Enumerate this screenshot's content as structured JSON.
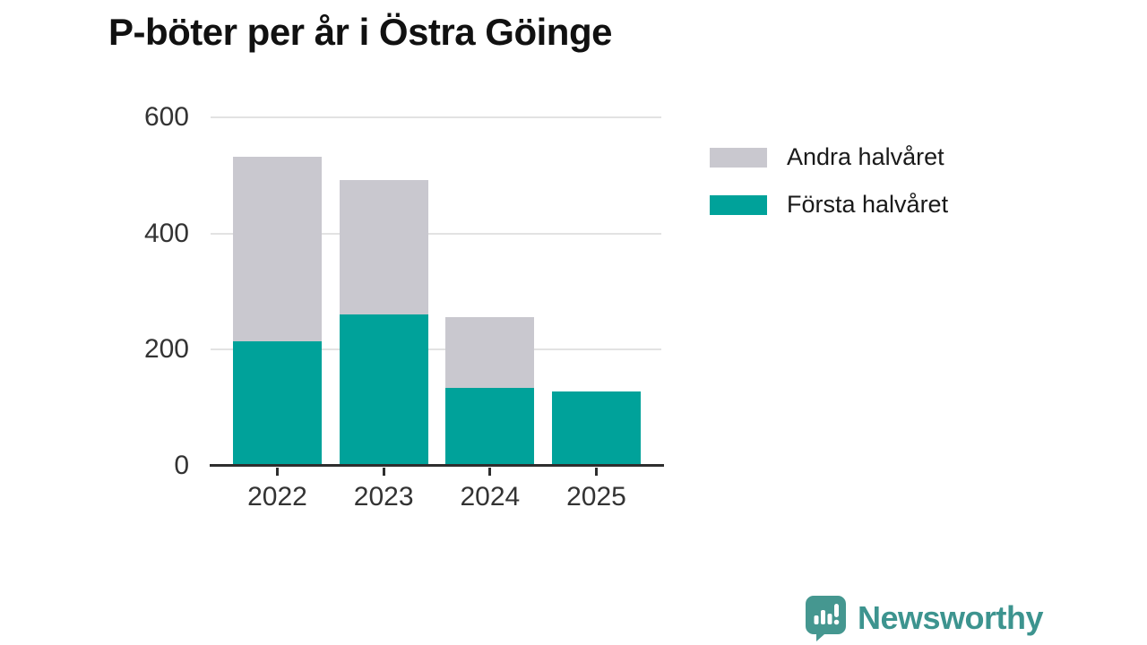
{
  "header": {
    "title": "P-böter per år i Östra Göinge"
  },
  "chart_data": {
    "type": "bar",
    "stacked": true,
    "title": "P-böter per år i Östra Göinge",
    "xlabel": "",
    "ylabel": "",
    "categories": [
      "2022",
      "2023",
      "2024",
      "2025"
    ],
    "series": [
      {
        "name": "Första halvåret",
        "color": "#00a29a",
        "values": [
          215,
          260,
          134,
          128
        ]
      },
      {
        "name": "Andra halvåret",
        "color": "#c9c8cf",
        "values": [
          317,
          232,
          122,
          0
        ]
      }
    ],
    "totals": [
      532,
      492,
      256,
      128
    ],
    "ylim": [
      0,
      600
    ],
    "yticks": [
      0,
      200,
      400,
      600
    ],
    "grid": "horizontal",
    "gridline_color": "#e2e2e2",
    "axis_color": "#2e2e2e",
    "legend_position": "right-top",
    "legend": [
      {
        "label": "Andra halvåret",
        "color": "#c9c8cf"
      },
      {
        "label": "Första halvåret",
        "color": "#00a29a"
      }
    ]
  },
  "branding": {
    "wordmark": "Newsworthy",
    "logo_icon": "speech-bubble-bar-chart-icon",
    "color": "#3d948f",
    "icon_color": "#459790"
  }
}
